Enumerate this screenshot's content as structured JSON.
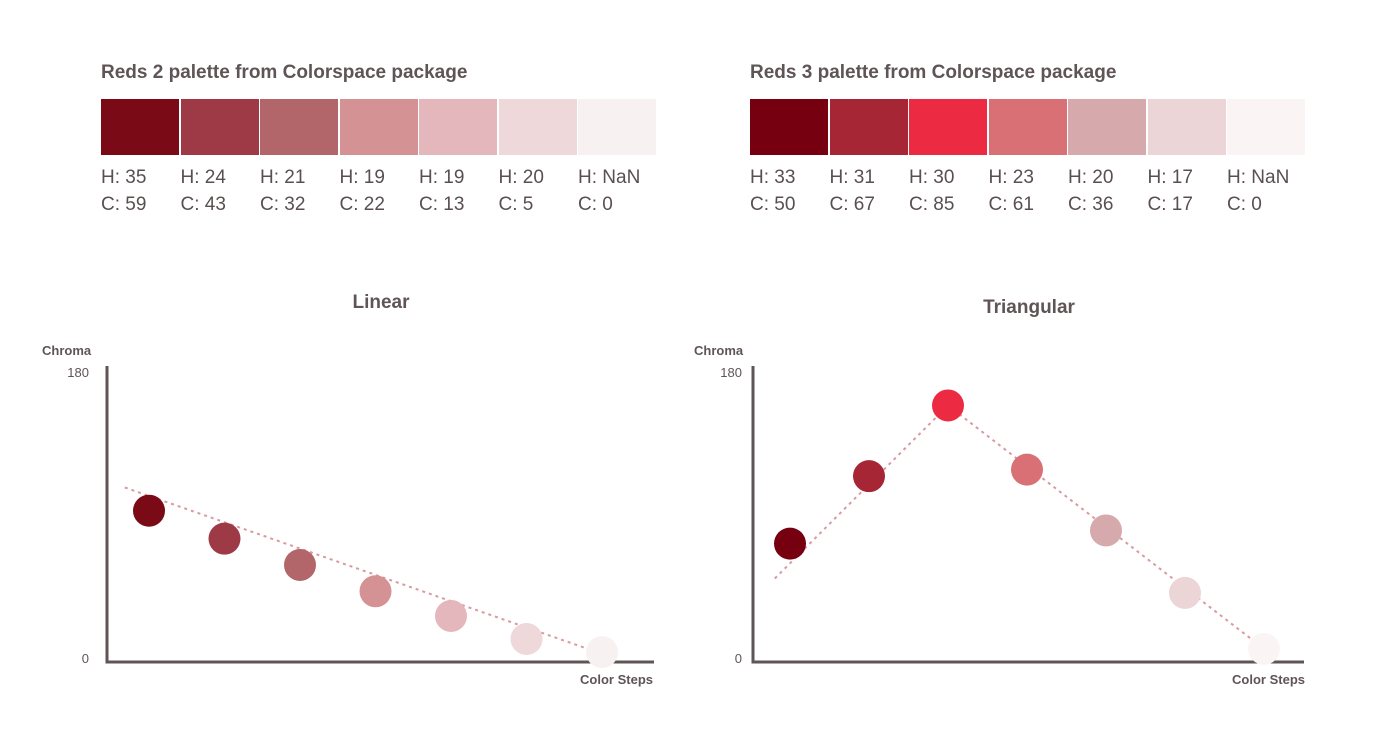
{
  "palettes": [
    {
      "title": "Reds 2 palette from Colorspace package",
      "swatches": [
        {
          "color": "#7a0a16",
          "h": "H: 35",
          "c": "C: 59"
        },
        {
          "color": "#9e3a45",
          "h": "H: 24",
          "c": "C: 43"
        },
        {
          "color": "#b26669",
          "h": "H: 21",
          "c": "C: 32"
        },
        {
          "color": "#d49295",
          "h": "H: 19",
          "c": "C: 22"
        },
        {
          "color": "#e3b7bb",
          "h": "H: 19",
          "c": "C: 13"
        },
        {
          "color": "#efd8da",
          "h": "H: 20",
          "c": "C: 5"
        },
        {
          "color": "#f8f1f2",
          "h": "H: NaN",
          "c": "C: 0"
        }
      ]
    },
    {
      "title": "Reds 3 palette from Colorspace package",
      "swatches": [
        {
          "color": "#770010",
          "h": "H: 33",
          "c": "C: 50"
        },
        {
          "color": "#a62636",
          "h": "H: 31",
          "c": "C: 67"
        },
        {
          "color": "#ec2b42",
          "h": "H: 30",
          "c": "C: 85"
        },
        {
          "color": "#d97076",
          "h": "H: 23",
          "c": "C: 61"
        },
        {
          "color": "#d6a9ac",
          "h": "H: 20",
          "c": "C: 36"
        },
        {
          "color": "#ecd5d7",
          "h": "H: 17",
          "c": "C: 17"
        },
        {
          "color": "#faf4f5",
          "h": "H: NaN",
          "c": "C: 0"
        }
      ]
    }
  ],
  "chart_data": [
    {
      "type": "scatter",
      "title": "Linear",
      "ylabel": "Chroma",
      "xlabel": "Color Steps",
      "ylim": [
        0,
        180
      ],
      "y_ticks": [
        "180",
        "0"
      ],
      "x": [
        1,
        2,
        3,
        4,
        5,
        6,
        7
      ],
      "values": [
        92,
        75,
        59,
        43,
        28,
        14,
        6
      ],
      "colors": [
        "#7a0a16",
        "#9e3a45",
        "#b26669",
        "#d49295",
        "#e3b7bb",
        "#efd8da",
        "#f8f1f2"
      ],
      "trend": [
        101,
        5
      ]
    },
    {
      "type": "scatter",
      "title": "Triangular",
      "ylabel": "Chroma",
      "xlabel": "Color Steps",
      "ylim": [
        0,
        180
      ],
      "y_ticks": [
        "180",
        "0"
      ],
      "x": [
        1,
        2,
        3,
        4,
        5,
        6,
        7
      ],
      "values": [
        72,
        113,
        156,
        117,
        80,
        42,
        8
      ],
      "colors": [
        "#770010",
        "#a62636",
        "#ec2b42",
        "#d97076",
        "#d6a9ac",
        "#ecd5d7",
        "#faf4f5"
      ],
      "trend": [
        60,
        156,
        8
      ]
    }
  ]
}
